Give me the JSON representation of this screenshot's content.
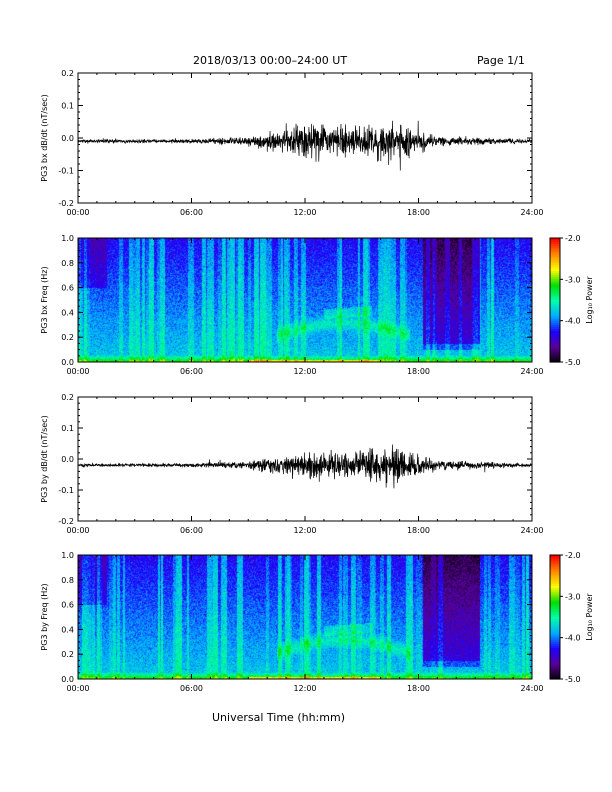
{
  "header": {
    "title": "2018/03/13  00:00–24:00 UT",
    "page": "Page 1/1"
  },
  "xaxis_label": "Universal Time (hh:mm)",
  "colorbar": {
    "label": "Log₁₀ Power",
    "ticks": [
      "-2.0",
      "-3.0",
      "-4.0",
      "-5.0"
    ],
    "range": [
      -5.0,
      -2.0
    ],
    "colormap": [
      "#000000",
      "#5a0096",
      "#1e00ff",
      "#00aaff",
      "#00ffaa",
      "#00dd00",
      "#ffff00",
      "#ff8800",
      "#ff0000"
    ]
  },
  "chart_data": [
    {
      "type": "line",
      "ylabel": "PG3 bx dB/dt (nT/sec)",
      "xlim": [
        0,
        24
      ],
      "ylim": [
        -0.2,
        0.2
      ],
      "xticks": [
        "00:00",
        "06:00",
        "12:00",
        "18:00",
        "24:00"
      ],
      "yticks": [
        "0.2",
        "0.1",
        "0.0",
        "-0.1",
        "-0.2"
      ],
      "baseline": -0.01,
      "envelope": [
        {
          "t": 0,
          "amp": 0.004
        },
        {
          "t": 6,
          "amp": 0.006
        },
        {
          "t": 9,
          "amp": 0.012
        },
        {
          "t": 11,
          "amp": 0.03
        },
        {
          "t": 12,
          "amp": 0.05
        },
        {
          "t": 14.5,
          "amp": 0.045
        },
        {
          "t": 17,
          "amp": 0.05
        },
        {
          "t": 19,
          "amp": 0.015
        },
        {
          "t": 24,
          "amp": 0.005
        }
      ]
    },
    {
      "type": "heatmap",
      "ylabel": "PG3 bx Freq (Hz)",
      "xlim": [
        0,
        24
      ],
      "ylim": [
        0.0,
        1.0
      ],
      "xticks": [
        "00:00",
        "06:00",
        "12:00",
        "18:00",
        "24:00"
      ],
      "yticks": [
        "1.0",
        "0.8",
        "0.6",
        "0.4",
        "0.2",
        "0.0"
      ],
      "colorbar_range": [
        -5.0,
        -2.0
      ]
    },
    {
      "type": "line",
      "ylabel": "PG3 by dB/dt (nT/sec)",
      "xlim": [
        0,
        24
      ],
      "ylim": [
        -0.2,
        0.2
      ],
      "xticks": [
        "00:00",
        "06:00",
        "12:00",
        "18:00",
        "24:00"
      ],
      "yticks": [
        "0.2",
        "0.1",
        "0.0",
        "-0.1",
        "-0.2"
      ],
      "baseline": -0.02,
      "envelope": [
        {
          "t": 0,
          "amp": 0.004
        },
        {
          "t": 6,
          "amp": 0.006
        },
        {
          "t": 9,
          "amp": 0.012
        },
        {
          "t": 11,
          "amp": 0.03
        },
        {
          "t": 12,
          "amp": 0.045
        },
        {
          "t": 14.5,
          "amp": 0.04
        },
        {
          "t": 17,
          "amp": 0.06
        },
        {
          "t": 19,
          "amp": 0.015
        },
        {
          "t": 24,
          "amp": 0.005
        }
      ]
    },
    {
      "type": "heatmap",
      "ylabel": "PG3 by Freq (Hz)",
      "xlim": [
        0,
        24
      ],
      "ylim": [
        0.0,
        1.0
      ],
      "xticks": [
        "00:00",
        "06:00",
        "12:00",
        "18:00",
        "24:00"
      ],
      "yticks": [
        "1.0",
        "0.8",
        "0.6",
        "0.4",
        "0.2",
        "0.0"
      ],
      "colorbar_range": [
        -5.0,
        -2.0
      ]
    }
  ]
}
